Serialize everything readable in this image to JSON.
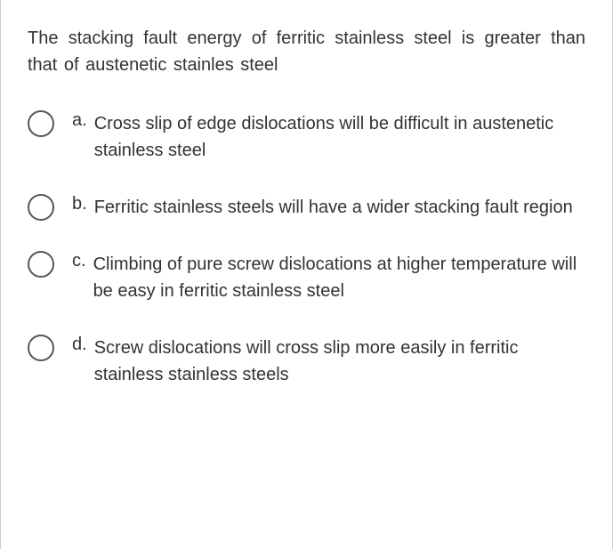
{
  "question": {
    "text": "The stacking fault energy of ferritic stainless steel is greater than that of austenetic stainles steel"
  },
  "options": [
    {
      "letter": "a.",
      "text": "Cross slip of edge dislocations will be difficult in austenetic stainless steel"
    },
    {
      "letter": "b.",
      "text": "Ferritic stainless steels will have a wider stacking fault region"
    },
    {
      "letter": "c.",
      "text": "Climbing of pure screw dislocations at higher temperature will be easy in ferritic stainless steel"
    },
    {
      "letter": "d.",
      "text": "Screw dislocations will cross slip more easily in ferritic stainless stainless steels"
    }
  ]
}
